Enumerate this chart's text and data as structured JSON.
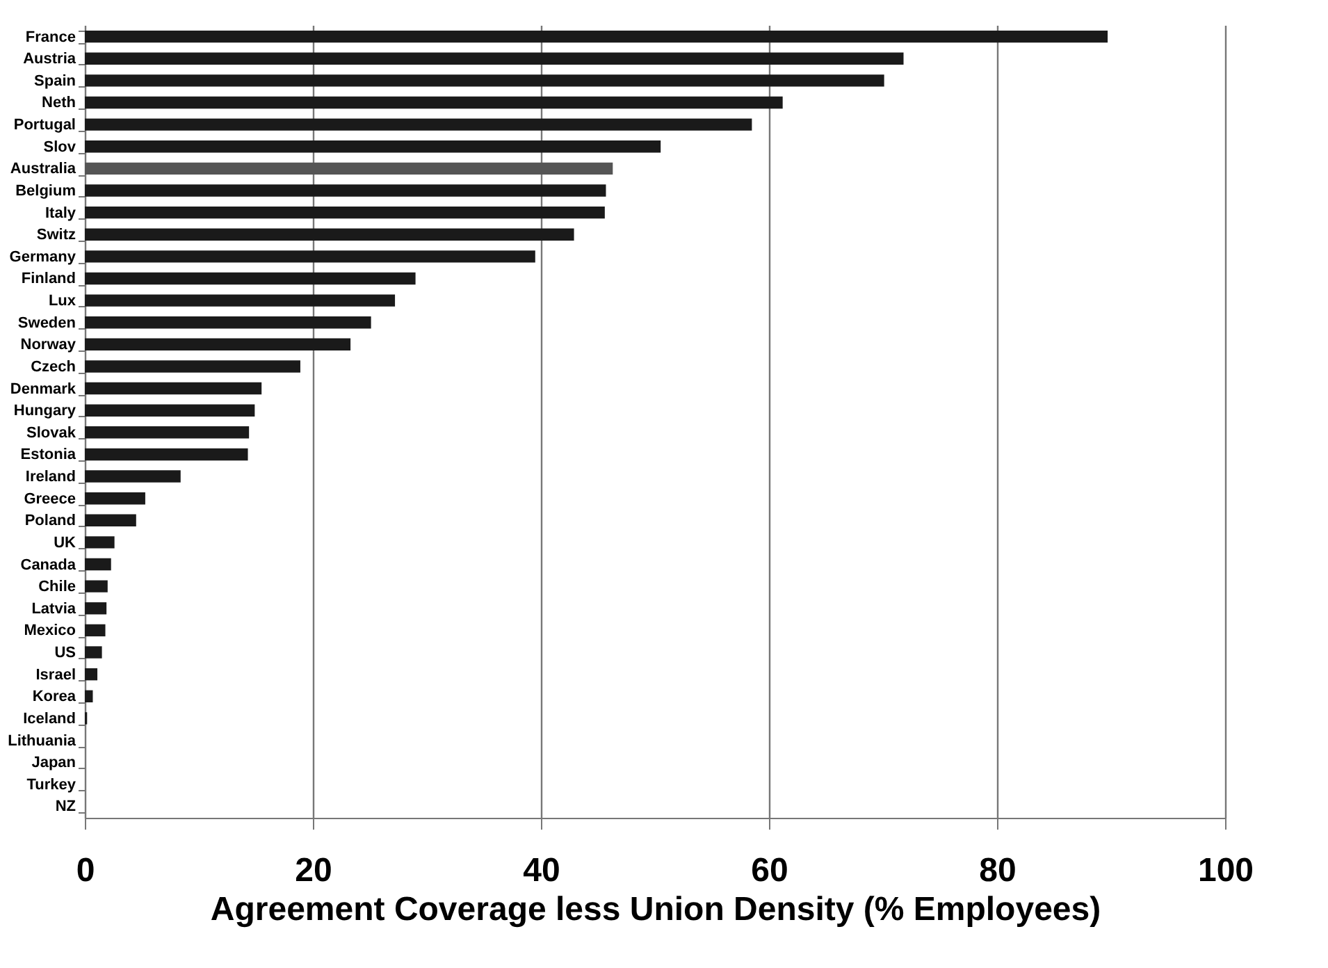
{
  "chart_data": {
    "type": "bar",
    "orientation": "horizontal",
    "xlabel": "Agreement Coverage less Union Density (% Employees)",
    "categories": [
      "France",
      "Austria",
      "Spain",
      "Neth",
      "Portugal",
      "Slov",
      "Australia",
      "Belgium",
      "Italy",
      "Switz",
      "Germany",
      "Finland",
      "Lux",
      "Sweden",
      "Norway",
      "Czech",
      "Denmark",
      "Hungary",
      "Slovak",
      "Estonia",
      "Ireland",
      "Greece",
      "Poland",
      "UK",
      "Canada",
      "Chile",
      "Latvia",
      "Mexico",
      "US",
      "Israel",
      "Korea",
      "Iceland",
      "Lithuania",
      "Japan",
      "Turkey",
      "NZ"
    ],
    "values": [
      89.7,
      71.8,
      70.1,
      61.2,
      58.5,
      50.5,
      46.3,
      45.7,
      45.6,
      42.9,
      39.5,
      29.0,
      27.2,
      25.1,
      23.3,
      18.9,
      15.5,
      14.9,
      14.4,
      14.3,
      8.4,
      5.3,
      4.5,
      2.6,
      2.3,
      2.0,
      1.9,
      1.8,
      1.5,
      1.1,
      0.7,
      0.2,
      0,
      0,
      0,
      0
    ],
    "colors": [
      "#1a1a1a",
      "#1a1a1a",
      "#1a1a1a",
      "#1a1a1a",
      "#1a1a1a",
      "#1a1a1a",
      "#555555",
      "#1a1a1a",
      "#1a1a1a",
      "#1a1a1a",
      "#1a1a1a",
      "#1a1a1a",
      "#1a1a1a",
      "#1a1a1a",
      "#1a1a1a",
      "#1a1a1a",
      "#1a1a1a",
      "#1a1a1a",
      "#1a1a1a",
      "#1a1a1a",
      "#1a1a1a",
      "#1a1a1a",
      "#1a1a1a",
      "#1a1a1a",
      "#1a1a1a",
      "#1a1a1a",
      "#1a1a1a",
      "#1a1a1a",
      "#1a1a1a",
      "#1a1a1a",
      "#1a1a1a",
      "#1a1a1a",
      "#1a1a1a",
      "#1a1a1a",
      "#1a1a1a",
      "#1a1a1a"
    ],
    "xlim": [
      0,
      100
    ],
    "xticks": [
      0,
      20,
      40,
      60,
      80,
      100
    ],
    "grid": "x"
  }
}
